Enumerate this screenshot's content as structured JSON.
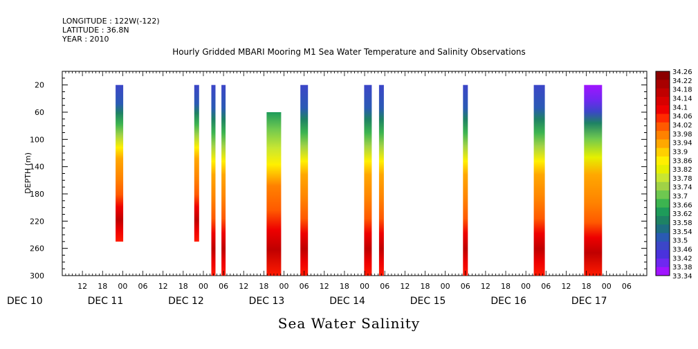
{
  "header": {
    "longitude": "LONGITUDE : 122W(-122)",
    "latitude": "LATITUDE : 36.8N",
    "year": "YEAR : 2010",
    "title": "Hourly Gridded MBARI Mooring M1 Sea Water Temperature and Salinity Observations"
  },
  "footer": {
    "title": "Sea Water Salinity"
  },
  "chart_data": {
    "type": "heatmap",
    "title": "Hourly Gridded MBARI Mooring M1 Sea Water Temperature and Salinity Observations",
    "xlabel": "",
    "ylabel": "DEPTH (m)",
    "ylim": [
      300,
      0
    ],
    "y_ticks": [
      20,
      60,
      100,
      140,
      180,
      220,
      260,
      300
    ],
    "x_tick_labels": [
      "12",
      "18",
      "00",
      "06",
      "12",
      "18",
      "00",
      "06",
      "12",
      "18",
      "00",
      "06",
      "12",
      "18",
      "00",
      "06",
      "12",
      "18",
      "00",
      "06",
      "12",
      "18",
      "00",
      "06",
      "12",
      "18",
      "00",
      "06"
    ],
    "x_date_labels": [
      "DEC 10",
      "DEC 11",
      "DEC 12",
      "DEC 13",
      "DEC 14",
      "DEC 15",
      "DEC 16",
      "DEC 17"
    ],
    "colorbar_levels": [
      "34.26",
      "34.22",
      "34.18",
      "34.14",
      "34.1",
      "34.06",
      "34.02",
      "33.98",
      "33.94",
      "33.9",
      "33.86",
      "33.82",
      "33.78",
      "33.74",
      "33.7",
      "33.66",
      "33.62",
      "33.58",
      "33.54",
      "33.5",
      "33.46",
      "33.42",
      "33.38",
      "33.34"
    ],
    "colorbar_colors": [
      "#8b0000",
      "#a80000",
      "#c00000",
      "#d80000",
      "#ee0000",
      "#ff2a00",
      "#ff5a00",
      "#ff8200",
      "#ffa800",
      "#ffd000",
      "#fff000",
      "#e6f000",
      "#c8e632",
      "#a0d246",
      "#6ec850",
      "#3cb450",
      "#1e9b5a",
      "#1e8264",
      "#1e6e82",
      "#2a5ab4",
      "#3c46c8",
      "#4a32dc",
      "#6e28f0",
      "#a014ff"
    ],
    "observations": [
      {
        "time": "Dec 10 23:00",
        "depth_top": 20,
        "depth_bottom": 250
      },
      {
        "time": "Dec 11 22:00",
        "depth_top": 20,
        "depth_bottom": 250
      },
      {
        "time": "Dec 12 03:00",
        "depth_top": 20,
        "depth_bottom": 300
      },
      {
        "time": "Dec 12 06:00",
        "depth_top": 20,
        "depth_bottom": 300
      },
      {
        "time": "Dec 12 21:00",
        "depth_top": 60,
        "depth_bottom": 300
      },
      {
        "time": "Dec 13 06:00",
        "depth_top": 20,
        "depth_bottom": 300
      },
      {
        "time": "Dec 14 01:00",
        "depth_top": 20,
        "depth_bottom": 300
      },
      {
        "time": "Dec 14 05:00",
        "depth_top": 20,
        "depth_bottom": 300
      },
      {
        "time": "Dec 15 06:00",
        "depth_top": 20,
        "depth_bottom": 300
      },
      {
        "time": "Dec 16 04:00",
        "depth_top": 20,
        "depth_bottom": 300
      },
      {
        "time": "Dec 16 20:00",
        "depth_top": 20,
        "depth_bottom": 300
      }
    ]
  }
}
